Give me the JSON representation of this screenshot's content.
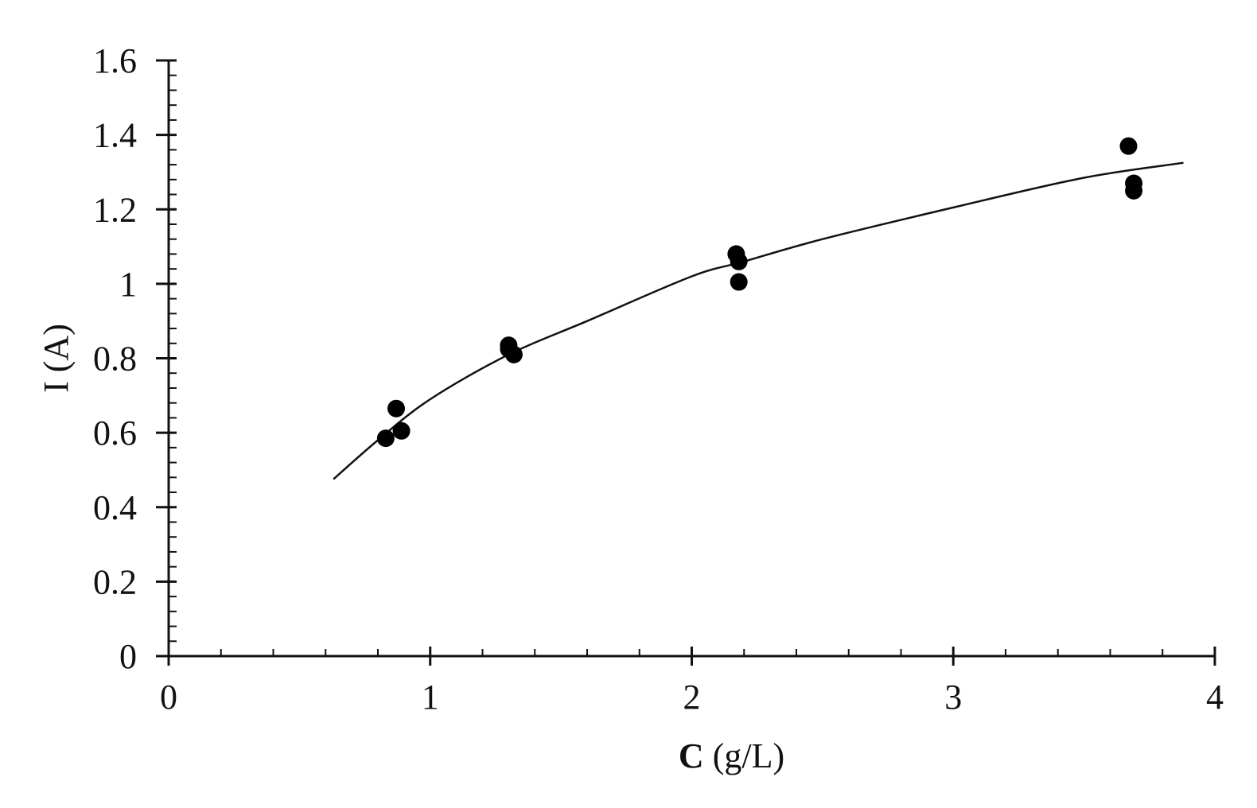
{
  "chart_data": {
    "type": "scatter",
    "title": "",
    "xlabel_bold": "C",
    "xlabel_rest": " (g/L)",
    "ylabel": "I (A)",
    "xlim": [
      0,
      4
    ],
    "ylim": [
      0,
      1.6
    ],
    "x_ticks": [
      0,
      1,
      2,
      3,
      4
    ],
    "x_tick_labels": [
      "0",
      "1",
      "2",
      "3",
      "4"
    ],
    "x_minor_step": 0.2,
    "y_ticks": [
      0,
      0.2,
      0.4,
      0.6,
      0.8,
      1.0,
      1.2,
      1.4,
      1.6
    ],
    "y_tick_labels": [
      "0",
      "0.2",
      "0.4",
      "0.6",
      "0.8",
      "1",
      "1.2",
      "1.4",
      "1.6"
    ],
    "y_minor_step": 0.04,
    "grid": false,
    "legend": "none",
    "colors": {
      "marker": "#000000",
      "curve": "#111111",
      "axis": "#111111"
    },
    "series": [
      {
        "kind": "points",
        "x": [
          0.83,
          0.87,
          0.89,
          1.3,
          1.3,
          1.32,
          2.17,
          2.18,
          2.18,
          3.67,
          3.69,
          3.69
        ],
        "y": [
          0.585,
          0.665,
          0.605,
          0.835,
          0.825,
          0.81,
          1.08,
          1.06,
          1.005,
          1.37,
          1.27,
          1.25
        ]
      },
      {
        "kind": "fit-curve",
        "x": [
          0.63,
          0.8,
          1.0,
          1.3,
          1.6,
          2.0,
          2.2,
          2.5,
          3.0,
          3.5,
          3.88
        ],
        "y": [
          0.475,
          0.58,
          0.69,
          0.81,
          0.9,
          1.02,
          1.06,
          1.12,
          1.205,
          1.285,
          1.325
        ]
      }
    ]
  }
}
